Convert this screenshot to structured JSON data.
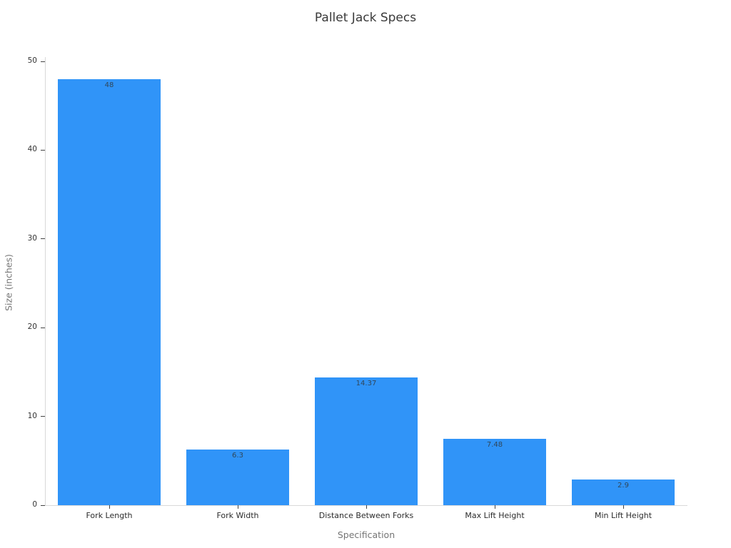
{
  "chart_data": {
    "type": "bar",
    "title": "Pallet Jack Specs",
    "categories": [
      "Fork Length",
      "Fork Width",
      "Distance Between Forks",
      "Max Lift Height",
      "Min Lift Height"
    ],
    "values": [
      48,
      6.3,
      14.37,
      7.48,
      2.9
    ],
    "xlabel": "Specification",
    "ylabel": "Size (inches)",
    "ylim": [
      0,
      50
    ],
    "yticks": [
      0,
      10,
      20,
      30,
      40,
      50
    ],
    "grid": false,
    "legend": "none",
    "bar_color": "#3094f8",
    "value_label_color": "#31475a",
    "axis_line_color": "#d9d9d9",
    "tick_color": "#444444",
    "tick_label_color": "#333333",
    "axis_title_color": "#757575",
    "title_color": "#3a3a3a",
    "background_color": "#ffffff"
  }
}
